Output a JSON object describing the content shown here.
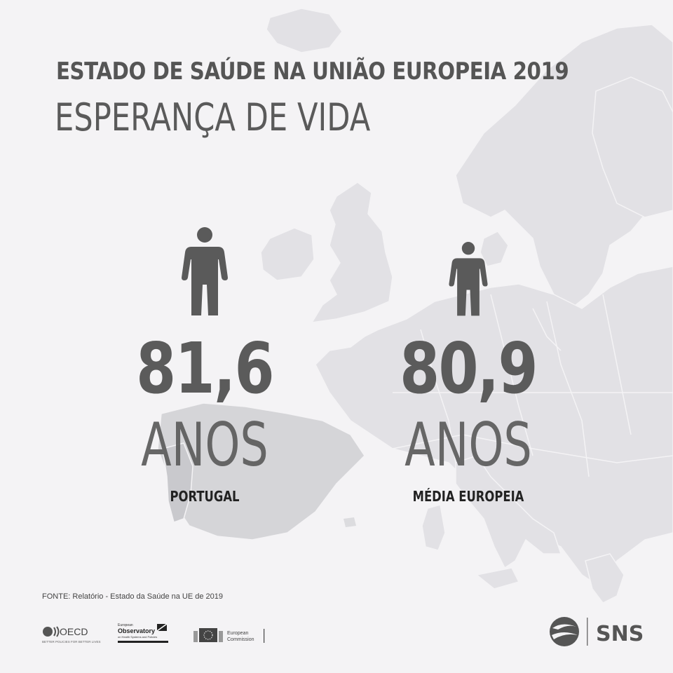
{
  "header": {
    "title": "ESTADO DE SAÚDE NA UNIÃO EUROPEIA 2019",
    "subtitle": "ESPERANÇA DE VIDA"
  },
  "stats": [
    {
      "value": "81,6",
      "unit": "ANOS",
      "label": "PORTUGAL",
      "icon": "person-icon"
    },
    {
      "value": "80,9",
      "unit": "ANOS",
      "label": "MÉDIA EUROPEIA",
      "icon": "person-icon"
    }
  ],
  "footer": {
    "source": "FONTE: Relatório - Estado da Saúde na UE de 2019",
    "logos": {
      "oecd": {
        "name": "OECD",
        "tagline": "BETTER POLICIES FOR BETTER LIVES"
      },
      "observatory": {
        "line1": "European",
        "line2": "Observatory",
        "line3": "on Health Systems and Policies"
      },
      "ec": {
        "line1": "European",
        "line2": "Commission"
      },
      "sns": {
        "name": "SNS"
      }
    }
  },
  "colors": {
    "background": "#f4f3f5",
    "map_land": "#e2e1e4",
    "map_highlight": "#d6d6d9",
    "text_dark": "#595959",
    "label": "#222222"
  }
}
